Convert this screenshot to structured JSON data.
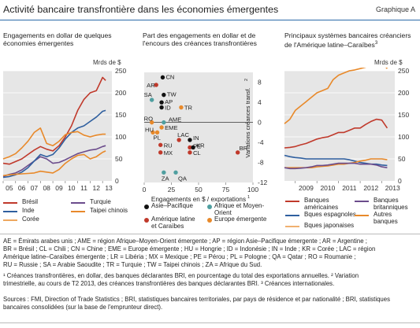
{
  "header": {
    "title": "Activité bancaire transfrontière dans les économies émergentes",
    "graph_label": "Graphique A"
  },
  "colors": {
    "red": "#c0392b",
    "blue": "#2f5f9f",
    "orange": "#e8892a",
    "purple": "#6b4c8c",
    "grey": "#4f9fa0",
    "panel_bg": "#e6e6e6"
  },
  "chart_data": [
    {
      "type": "line",
      "title": "Engagements en dollar de quelques économies émergentes",
      "unit": "Mrds de $",
      "ylim": [
        0,
        250
      ],
      "yticks": [
        0,
        50,
        100,
        150,
        200,
        250
      ],
      "x_tick_labels": [
        "05",
        "06",
        "07",
        "08",
        "09",
        "10",
        "11",
        "12",
        "13"
      ],
      "x": [
        2005,
        2005.5,
        2006,
        2006.5,
        2007,
        2007.5,
        2008,
        2008.5,
        2009,
        2009.5,
        2010,
        2010.5,
        2011,
        2011.5,
        2012,
        2012.5,
        2013,
        2013.25
      ],
      "series": [
        {
          "name": "Brésil",
          "color": "red",
          "values": [
            40,
            38,
            44,
            50,
            60,
            70,
            78,
            72,
            68,
            80,
            100,
            125,
            160,
            185,
            200,
            205,
            235,
            228
          ]
        },
        {
          "name": "Turquie",
          "color": "purple",
          "values": [
            10,
            15,
            18,
            25,
            35,
            45,
            55,
            50,
            40,
            42,
            48,
            55,
            62,
            66,
            70,
            72,
            78,
            80
          ]
        },
        {
          "name": "Inde",
          "color": "blue",
          "values": [
            8,
            10,
            14,
            20,
            30,
            45,
            60,
            55,
            60,
            75,
            95,
            110,
            120,
            125,
            135,
            145,
            158,
            160
          ]
        },
        {
          "name": "Taipei chinois",
          "color": "orange",
          "values": [
            12,
            14,
            15,
            16,
            17,
            18,
            22,
            20,
            18,
            26,
            40,
            50,
            58,
            60,
            50,
            55,
            65,
            68
          ]
        },
        {
          "name": "Corée",
          "color": "orange",
          "values": [
            50,
            55,
            62,
            75,
            90,
            110,
            120,
            85,
            80,
            90,
            105,
            110,
            112,
            104,
            100,
            104,
            106,
            106
          ]
        }
      ]
    },
    {
      "type": "scatter",
      "title": "Part des engagements en dollar et de l'encours des créances transfrontières",
      "xlabel": "Engagements en $ / exportations",
      "xlabel_sup": "1",
      "ylabel": "Variations créances transf.",
      "ylabel_sup": "2",
      "xlim": [
        0,
        100
      ],
      "ylim": [
        -12,
        10
      ],
      "xticks": [
        0,
        25,
        50,
        75,
        100
      ],
      "yticks": [
        -12,
        -8,
        -4,
        0,
        4,
        8
      ],
      "groups": [
        {
          "name": "Asie–Pacifique",
          "color": "#111111"
        },
        {
          "name": "Afrique et Moyen-Orient",
          "color": "#4f9fa0"
        },
        {
          "name": "Amérique latine et Caraïbes",
          "color": "#c0392b"
        },
        {
          "name": "Europe émergente",
          "color": "#e8892a"
        }
      ],
      "points": [
        {
          "label": "CN",
          "x": 17,
          "y": 9,
          "group": 0
        },
        {
          "label": "AR",
          "x": 11,
          "y": 7.5,
          "group": 2
        },
        {
          "label": "SA",
          "x": 7,
          "y": 4.5,
          "group": 1
        },
        {
          "label": "TW",
          "x": 18,
          "y": 5.5,
          "group": 0
        },
        {
          "label": "AP",
          "x": 16,
          "y": 4,
          "group": 0
        },
        {
          "label": "ID",
          "x": 16,
          "y": 3,
          "group": 0
        },
        {
          "label": "TR",
          "x": 34,
          "y": 3,
          "group": 3
        },
        {
          "label": "RO",
          "x": 7,
          "y": 0,
          "group": 3
        },
        {
          "label": "AME",
          "x": 18,
          "y": 0,
          "group": 1
        },
        {
          "label": "EME",
          "x": 16,
          "y": -1,
          "group": 3
        },
        {
          "label": "HU",
          "x": 8,
          "y": -2,
          "group": 3
        },
        {
          "label": "PL",
          "x": 12,
          "y": -2,
          "group": 3
        },
        {
          "label": "LAC",
          "x": 32,
          "y": -3.5,
          "group": 2
        },
        {
          "label": "IN",
          "x": 42,
          "y": -3.5,
          "group": 0
        },
        {
          "label": "RU",
          "x": 15,
          "y": -4.5,
          "group": 2
        },
        {
          "label": "PE",
          "x": 42,
          "y": -5,
          "group": 2
        },
        {
          "label": "KR",
          "x": 45,
          "y": -5,
          "group": 0
        },
        {
          "label": "CL",
          "x": 42,
          "y": -6,
          "group": 2
        },
        {
          "label": "MX",
          "x": 15,
          "y": -6,
          "group": 2
        },
        {
          "label": "BR",
          "x": 86,
          "y": -6,
          "group": 2
        },
        {
          "label": "ZA",
          "x": 18,
          "y": -10,
          "group": 1
        },
        {
          "label": "QA",
          "x": 29,
          "y": -10,
          "group": 1
        }
      ]
    },
    {
      "type": "line",
      "title": "Principaux systèmes bancaires créanciers de l'Amérique latine–Caraïbes",
      "title_sup": "3",
      "unit": "Mrds de $",
      "ylim": [
        0,
        250
      ],
      "yticks": [
        0,
        50,
        100,
        150,
        200,
        250
      ],
      "x_tick_labels": [
        "2009",
        "2010",
        "2011",
        "2012",
        "2013"
      ],
      "x": [
        2008.5,
        2008.75,
        2009,
        2009.25,
        2009.5,
        2009.75,
        2010,
        2010.25,
        2010.5,
        2010.75,
        2011,
        2011.25,
        2011.5,
        2011.75,
        2012,
        2012.25,
        2012.5,
        2012.75,
        2013,
        2013.25
      ],
      "series": [
        {
          "name": "Banques américaines",
          "color": "red",
          "values": [
            75,
            76,
            78,
            82,
            85,
            90,
            95,
            98,
            100,
            105,
            110,
            110,
            115,
            120,
            120,
            128,
            135,
            140,
            138,
            120
          ]
        },
        {
          "name": "Bques espagnoles",
          "color": "blue",
          "values": [
            58,
            55,
            53,
            52,
            50,
            50,
            50,
            50,
            50,
            50,
            50,
            50,
            48,
            45,
            42,
            40,
            38,
            38,
            36,
            35
          ]
        },
        {
          "name": "Bques japonaises",
          "color": "orange",
          "values": [
            30,
            30,
            30,
            30,
            30,
            30,
            32,
            33,
            34,
            36,
            38,
            38,
            40,
            42,
            45,
            47,
            50,
            50,
            50,
            48
          ]
        },
        {
          "name": "Banques britanniques",
          "color": "purple",
          "values": [
            30,
            28,
            28,
            29,
            30,
            32,
            35,
            35,
            36,
            38,
            40,
            40,
            40,
            40,
            38,
            38,
            38,
            36,
            32,
            30
          ]
        },
        {
          "name": "Autres banques",
          "color": "orange",
          "values": [
            130,
            140,
            160,
            170,
            180,
            190,
            200,
            205,
            210,
            230,
            240,
            245,
            250,
            252,
            255,
            258,
            265,
            270,
            268,
            255
          ]
        }
      ]
    }
  ],
  "legends": {
    "left": [
      "Brésil",
      "Turquie",
      "Inde",
      "Taipei chinois",
      "Corée"
    ],
    "mid": [
      "Asie–Pacifique",
      "Afrique et Moyen-",
      "Orient",
      "Amérique latine",
      "et Caraïbes",
      "Europe émergente"
    ],
    "right": [
      "Banques",
      "américaines",
      "Banques",
      "britanniques",
      "Bques espagnoles",
      "Autres",
      "banques",
      "Bques japonaises"
    ]
  },
  "notes": {
    "abbr1": "AE = Émirats arabes unis ; AME = région Afrique–Moyen-Orient émergente ; AP = région Asie–Pacifique émergente ; AR = Argentine ;",
    "abbr2": "BR = Brésil ; CL = Chili ; CN = Chine ; EME = Europe émergente ; HU = Hongrie ; ID = Indonésie ; IN = Inde ; KR = Corée ; LAC = région",
    "abbr3": "Amérique latine–Caraïbes émergente ; LR = Libéria ; MX = Mexique ; PE = Pérou ; PL = Pologne ; QA = Qatar ; RO = Roumanie ;",
    "abbr4": "RU = Russie ; SA = Arabie Saoudite ; TR = Turquie ; TW = Taipei chinois ; ZA = Afrique du Sud.",
    "fn1": "¹ Créances transfrontières, en dollar, des banques déclarantes BRI, en pourcentage du total des exportations annuelles.   ² Variation",
    "fn2": "trimestrielle, au cours de T2 2013, des créances transfrontières des banques déclarantes BRI.   ³ Créances internationales.",
    "src1": "Sources : FMI, Direction of Trade Statistics ; BRI, statistiques bancaires territoriales, par pays de résidence et par nationalité ; BRI, statistiques",
    "src2": "bancaires consolidées (sur la base de l'emprunteur direct)."
  }
}
